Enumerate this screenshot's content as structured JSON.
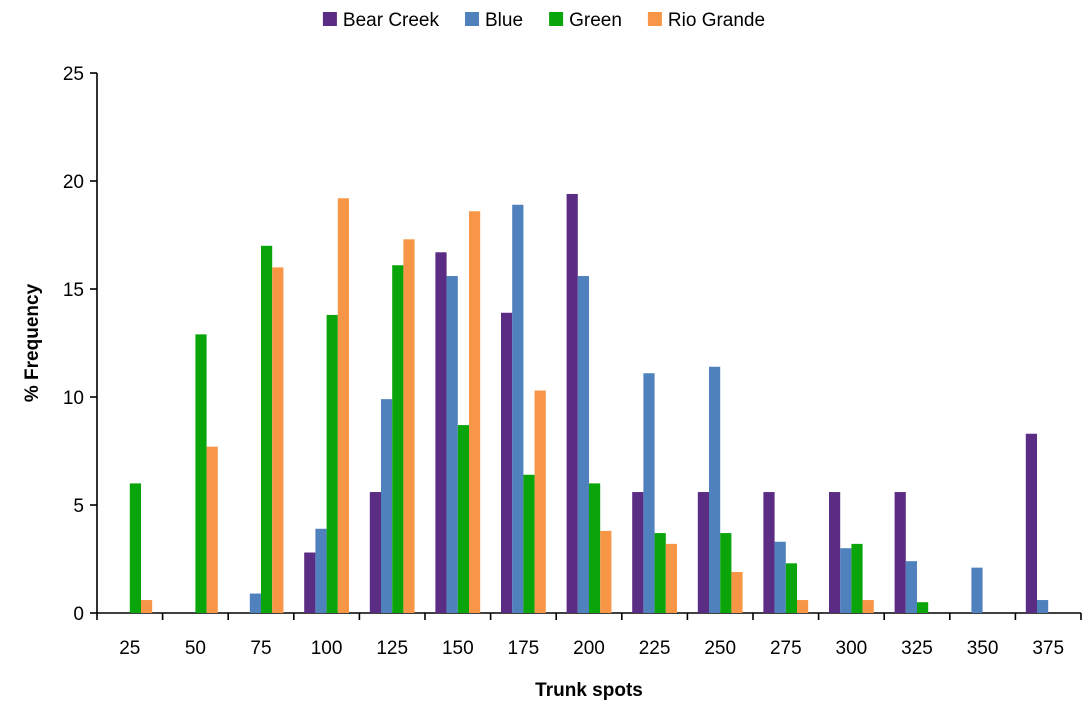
{
  "chart_data": {
    "type": "bar",
    "title": "",
    "xlabel": "Trunk spots",
    "ylabel": "% Frequency",
    "ylim": [
      0,
      25
    ],
    "yticks": [
      0,
      5,
      10,
      15,
      20,
      25
    ],
    "grid": false,
    "legend_position": "top",
    "categories": [
      "25",
      "50",
      "75",
      "100",
      "125",
      "150",
      "175",
      "200",
      "225",
      "250",
      "275",
      "300",
      "325",
      "350",
      "375"
    ],
    "series": [
      {
        "name": "Bear Creek",
        "color": "#5b2c83",
        "values": [
          0,
          0,
          0,
          2.8,
          5.6,
          16.7,
          13.9,
          19.4,
          5.6,
          5.6,
          5.6,
          5.6,
          5.6,
          0,
          8.3
        ]
      },
      {
        "name": "Blue",
        "color": "#4f81bd",
        "values": [
          0,
          0,
          0.9,
          3.9,
          9.9,
          15.6,
          18.9,
          15.6,
          11.1,
          11.4,
          3.3,
          3.0,
          2.4,
          2.1,
          0.6
        ]
      },
      {
        "name": "Green",
        "color": "#0aa50a",
        "values": [
          6.0,
          12.9,
          17.0,
          13.8,
          16.1,
          8.7,
          6.4,
          6.0,
          3.7,
          3.7,
          2.3,
          3.2,
          0.5,
          0,
          0
        ]
      },
      {
        "name": "Rio Grande",
        "color": "#f79646",
        "values": [
          0.6,
          7.7,
          16.0,
          19.2,
          17.3,
          18.6,
          10.3,
          3.8,
          3.2,
          1.9,
          0.6,
          0.6,
          0,
          0,
          0
        ]
      }
    ]
  }
}
